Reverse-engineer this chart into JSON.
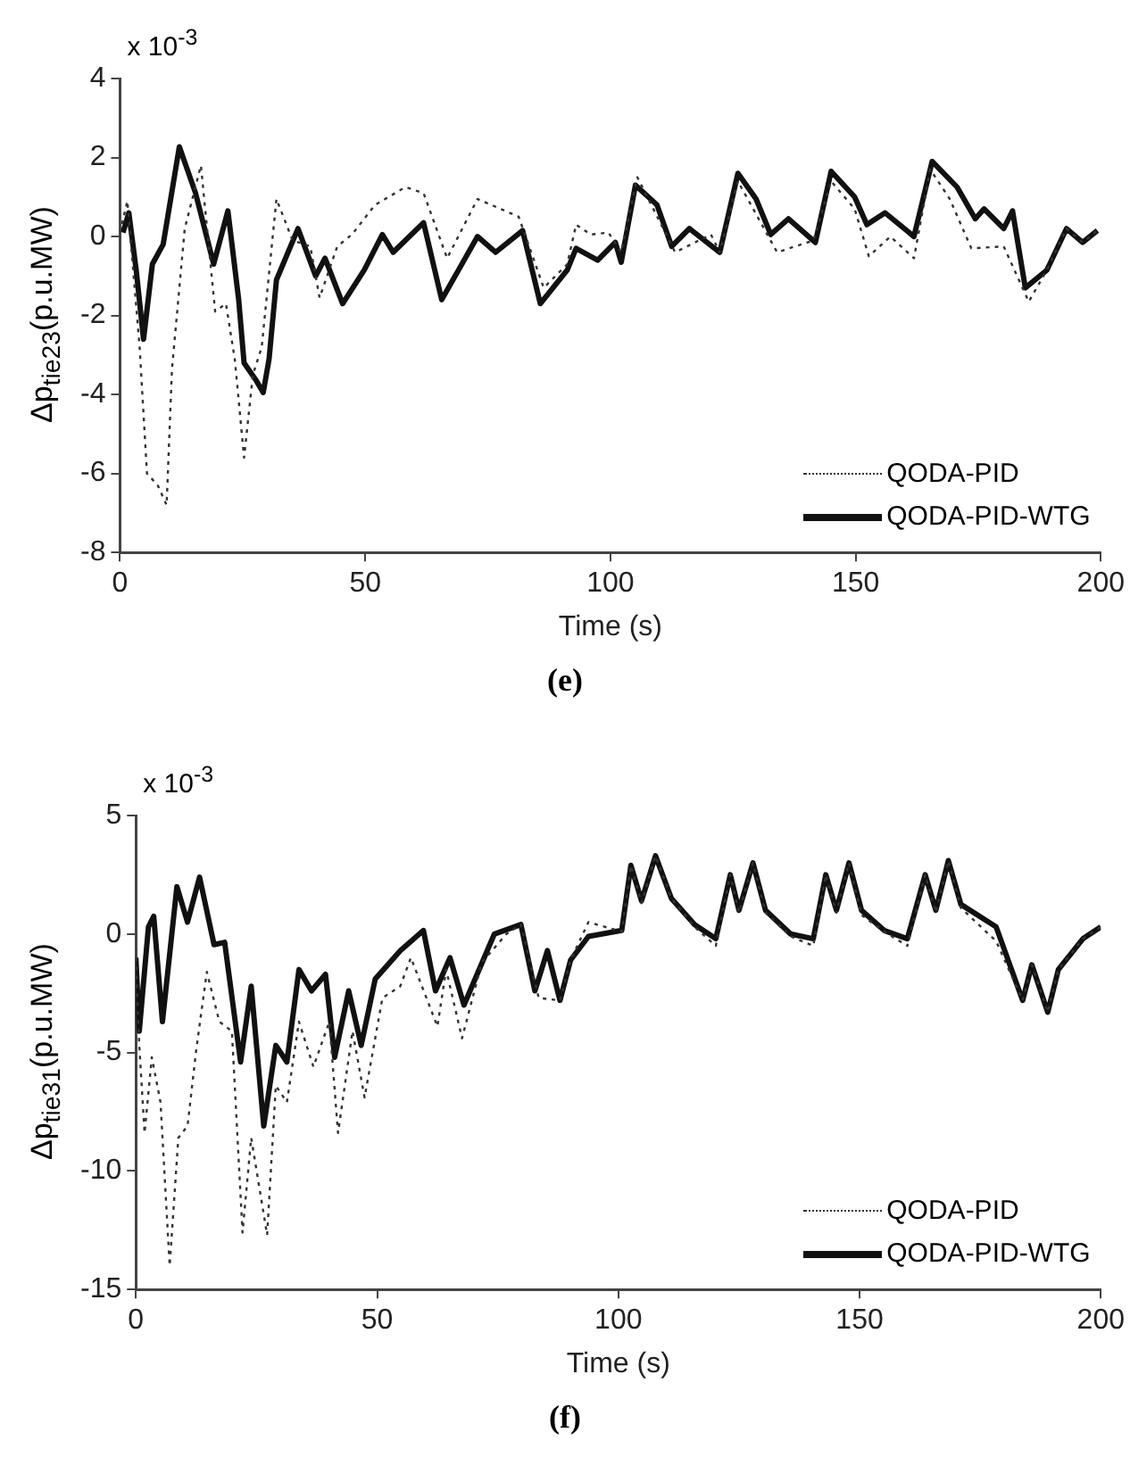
{
  "chart_data": [
    {
      "type": "line",
      "ylabel": "Δp$_{tie23}$(p.u.MW)",
      "xlabel": "Time (s)",
      "annotations": [
        "x 10$^{-3}$",
        "(e)"
      ],
      "xlim": [
        0,
        200
      ],
      "xticks": [
        0,
        50,
        100,
        150,
        200
      ],
      "ylim": [
        -8,
        4
      ],
      "yticks": [
        -8,
        -6,
        -4,
        -2,
        0,
        2,
        4
      ],
      "grid": false,
      "legend": "bottom right",
      "marker": "none",
      "series": [
        {
          "name": "QODA-PID",
          "color": "#333333",
          "line_style": "dotted",
          "x": [
            0,
            1.5,
            4,
            5.5,
            7.7,
            9.5,
            10.6,
            13.2,
            16.5,
            19.4,
            21.6,
            23.4,
            25.3,
            27.1,
            28.9,
            31.9,
            35.2,
            38.8,
            40.7,
            44.3,
            47.3,
            52,
            58.2,
            61.9,
            66.7,
            72.9,
            81.3,
            86.4,
            91.2,
            93,
            96,
            99.6,
            102.2,
            105.5,
            113.2,
            120.5,
            122.3,
            126,
            134,
            141.4,
            145,
            149.8,
            152.7,
            157.1,
            161.9,
            165.2,
            169.2,
            173.6,
            180.2,
            185.3,
            189,
            193,
            196.3,
            199.3
          ],
          "values": [
            0.1,
            0.9,
            -2.8,
            -6.0,
            -6.3,
            -6.8,
            -3.35,
            0.2,
            1.8,
            -1.9,
            -1.7,
            -3.1,
            -5.6,
            -3.5,
            -2.8,
            0.95,
            -0.1,
            -0.25,
            -1.55,
            -0.25,
            0.05,
            0.8,
            1.25,
            1.1,
            -0.55,
            0.95,
            0.5,
            -1.3,
            -0.7,
            0.3,
            0.05,
            0.1,
            -0.4,
            1.5,
            -0.4,
            0.05,
            -0.4,
            1.4,
            -0.4,
            -0.1,
            1.4,
            0.7,
            -0.5,
            0,
            -0.55,
            1.7,
            0.95,
            -0.3,
            -0.25,
            -1.65,
            -0.85,
            0.2,
            -0.15,
            0.15
          ]
        },
        {
          "name": "QODA-PID-WTG",
          "color": "#111111",
          "line_style": "solid",
          "x": [
            0.6,
            1.8,
            3.3,
            4.8,
            6.6,
            8.8,
            12.1,
            15.4,
            19.1,
            22,
            24.2,
            25.3,
            27.8,
            29.2,
            30.4,
            31.9,
            36.3,
            39.9,
            41.8,
            45.4,
            49.8,
            53.5,
            55.7,
            61.9,
            65.6,
            72.9,
            76.6,
            82.1,
            85.7,
            91.2,
            93,
            97.4,
            101,
            102.2,
            105.1,
            109.5,
            112.5,
            116.1,
            122.3,
            126,
            129.7,
            132.7,
            136.3,
            141.8,
            145,
            149.8,
            152.3,
            156,
            161.9,
            165.6,
            170.7,
            174.4,
            176.2,
            180.2,
            182,
            184.6,
            189,
            193,
            196.3,
            199.3
          ],
          "values": [
            0.1,
            0.6,
            -0.85,
            -2.6,
            -0.7,
            -0.2,
            2.27,
            1.1,
            -0.7,
            0.65,
            -1.6,
            -3.2,
            -3.65,
            -3.95,
            -3.1,
            -1.1,
            0.2,
            -1.0,
            -0.55,
            -1.7,
            -0.85,
            0.05,
            -0.4,
            0.35,
            -1.6,
            0,
            -0.4,
            0.15,
            -1.7,
            -0.85,
            -0.3,
            -0.6,
            -0.15,
            -0.65,
            1.3,
            0.8,
            -0.25,
            0.2,
            -0.4,
            1.6,
            0.95,
            0.05,
            0.45,
            -0.15,
            1.65,
            1.0,
            0.3,
            0.6,
            0,
            1.9,
            1.25,
            0.45,
            0.7,
            0.2,
            0.65,
            -1.3,
            -0.85,
            0.2,
            -0.15,
            0.15
          ]
        }
      ]
    },
    {
      "type": "line",
      "ylabel": "Δp$_{tie31}$(p.u.MW)",
      "xlabel": "Time (s)",
      "annotations": [
        "x 10$^{-3}$",
        "(f)"
      ],
      "xlim": [
        0,
        200
      ],
      "xticks": [
        0,
        50,
        100,
        150,
        200
      ],
      "ylim": [
        -15,
        5
      ],
      "yticks": [
        -15,
        -10,
        -5,
        0,
        5
      ],
      "grid": false,
      "legend": "bottom right",
      "marker": "none",
      "series": [
        {
          "name": "QODA-PID",
          "color": "#333333",
          "line_style": "dotted",
          "x": [
            0,
            0.7,
            1.8,
            3.3,
            5.1,
            7,
            8.8,
            10.7,
            12.5,
            14.7,
            17.3,
            19.9,
            22.1,
            23.9,
            27.2,
            29,
            31.3,
            33.8,
            36.8,
            40.1,
            41.9,
            44.9,
            47.4,
            51.1,
            54.8,
            57,
            62.5,
            64.3,
            67.6,
            71.7,
            76.8,
            79.8,
            83.5,
            87.9,
            90.1,
            93.8,
            100.7,
            102.6,
            104.8,
            107.7,
            111,
            115.8,
            120.2,
            123.2,
            125,
            127.9,
            130.5,
            135.7,
            140.4,
            143,
            145.2,
            147.8,
            150.4,
            155.1,
            159.9,
            163.6,
            165.8,
            168.4,
            171,
            178.3,
            183.8,
            185.7,
            189,
            191.2,
            196.3,
            200
          ],
          "values": [
            -1,
            -4.7,
            -8.4,
            -5.2,
            -7.1,
            -14,
            -8.6,
            -8.1,
            -4.9,
            -1.6,
            -3.7,
            -4.1,
            -12.6,
            -8.6,
            -12.7,
            -6.4,
            -7.1,
            -3.7,
            -5.6,
            -3.7,
            -8.4,
            -4.1,
            -6.9,
            -2.7,
            -2.2,
            -1.0,
            -3.9,
            -1.5,
            -4.4,
            -1.2,
            0,
            0.4,
            -2.7,
            -2.8,
            -1.1,
            0.5,
            0.1,
            2.9,
            1.3,
            3.3,
            1.5,
            0.3,
            -0.5,
            2.5,
            0.9,
            3.0,
            0.9,
            -0.1,
            -0.5,
            2.5,
            0.9,
            3.0,
            0.8,
            0.1,
            -0.5,
            2.5,
            0.9,
            3.1,
            1.1,
            -0.3,
            -2.8,
            -1.3,
            -3.3,
            -1.5,
            -0.2,
            0.3
          ]
        },
        {
          "name": "QODA-PID-WTG",
          "color": "#111111",
          "line_style": "solid",
          "x": [
            0,
            0.7,
            2.6,
            3.7,
            5.5,
            8.5,
            10.7,
            13.2,
            16.2,
            18.4,
            21.7,
            23.9,
            26.5,
            29,
            31.3,
            33.8,
            36.4,
            39.3,
            41.2,
            44.1,
            46.7,
            49.6,
            54.8,
            59.6,
            62.1,
            65.1,
            68,
            74.3,
            79.8,
            82.7,
            85.3,
            87.9,
            90.1,
            93.8,
            100.7,
            102.6,
            104.8,
            107.7,
            111,
            115.8,
            120.2,
            123.2,
            125,
            127.9,
            130.5,
            135.7,
            140.4,
            143,
            145.2,
            147.8,
            150.4,
            155.1,
            159.9,
            163.6,
            165.8,
            168.4,
            171,
            178.3,
            183.8,
            185.7,
            189,
            191.2,
            196.3,
            200
          ],
          "values": [
            -1,
            -4.1,
            0.3,
            0.75,
            -3.7,
            2.0,
            0.5,
            2.4,
            -0.45,
            -0.35,
            -5.4,
            -2.2,
            -8.1,
            -4.7,
            -5.4,
            -1.5,
            -2.4,
            -1.7,
            -5.2,
            -2.4,
            -4.7,
            -1.9,
            -0.7,
            0.15,
            -2.4,
            -1.0,
            -3.0,
            0,
            0.4,
            -2.4,
            -0.7,
            -2.8,
            -1.1,
            -0.1,
            0.15,
            2.9,
            1.4,
            3.3,
            1.5,
            0.4,
            -0.2,
            2.5,
            1.0,
            3.0,
            1.0,
            0,
            -0.2,
            2.5,
            1.0,
            3.0,
            1.0,
            0.15,
            -0.2,
            2.5,
            1.0,
            3.1,
            1.25,
            0.3,
            -2.8,
            -1.3,
            -3.3,
            -1.5,
            -0.2,
            0.3
          ]
        }
      ]
    }
  ]
}
